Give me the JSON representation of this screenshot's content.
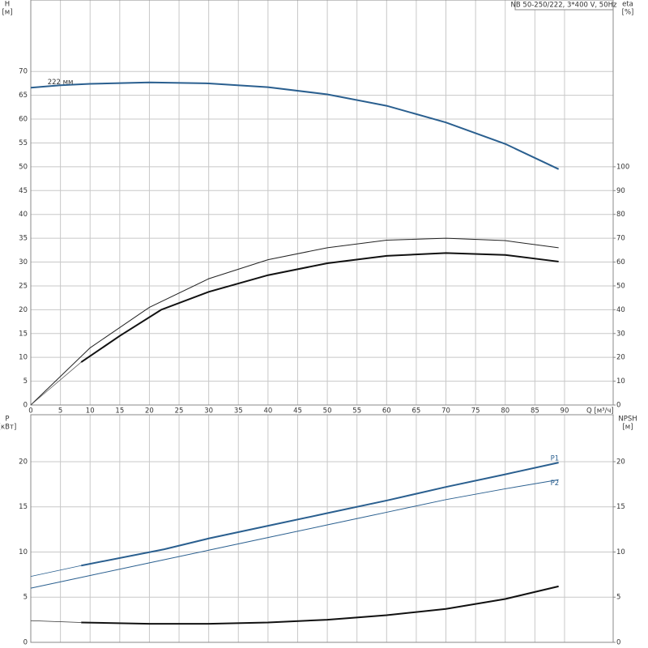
{
  "chart_data": [
    {
      "type": "line",
      "title": "NB 50-250/222, 3*400 V, 50Hz",
      "ylabel": "H",
      "ylabel_unit": "[м]",
      "y2label": "eta",
      "y2label_unit": "[%]",
      "xlabel": "Q [м³/ч]",
      "xlim": [
        0,
        98.2
      ],
      "xticks": [
        0,
        5,
        10,
        15,
        20,
        25,
        30,
        35,
        40,
        45,
        50,
        55,
        60,
        65,
        70,
        75,
        80,
        85,
        90
      ],
      "ylim": [
        0,
        85
      ],
      "yticks": [
        0,
        5,
        10,
        15,
        20,
        25,
        30,
        35,
        40,
        45,
        50,
        55,
        60,
        65,
        70
      ],
      "y2lim": [
        0,
        170
      ],
      "y2ticks": [
        0,
        10,
        20,
        30,
        40,
        50,
        60,
        70,
        80,
        90,
        100
      ],
      "grid": true,
      "series": [
        {
          "name": "222 мм",
          "color": "#2a5f8f",
          "line_width": 2,
          "axis": "y",
          "x": [
            0,
            5,
            10,
            20,
            30,
            40,
            50,
            60,
            70,
            80,
            89
          ],
          "values": [
            66.6,
            67.1,
            67.4,
            67.7,
            67.5,
            66.7,
            65.2,
            62.8,
            59.3,
            54.8,
            49.5
          ]
        },
        {
          "color": "#222222",
          "line_width": 1,
          "axis": "y2",
          "x": [
            0,
            10,
            20,
            30,
            40,
            50,
            60,
            70,
            80,
            89
          ],
          "values": [
            0,
            24,
            41,
            53,
            61,
            66,
            69.2,
            70,
            69,
            66
          ]
        },
        {
          "color": "#111111",
          "line_width": 2,
          "axis": "y2",
          "x": [
            8.5,
            15,
            22,
            30,
            40,
            50,
            60,
            70,
            80,
            89
          ],
          "values": [
            18,
            29,
            40,
            47.5,
            54.5,
            59.5,
            62.6,
            63.8,
            63,
            60.2
          ]
        },
        {
          "color": "#555555",
          "line_width": 0.7,
          "axis": "y2",
          "x": [
            0,
            8.5
          ],
          "values": [
            0,
            18
          ]
        }
      ]
    },
    {
      "type": "line",
      "ylabel": "P",
      "ylabel_unit": "[кВт]",
      "y2label": "NPSH",
      "y2label_unit": "[м]",
      "xlim": [
        0,
        98.2
      ],
      "ylim": [
        0,
        25.2
      ],
      "yticks": [
        0,
        5,
        10,
        15,
        20
      ],
      "y2lim": [
        0,
        25.2
      ],
      "y2ticks": [
        0,
        5,
        10,
        15,
        20
      ],
      "grid": true,
      "series": [
        {
          "name": "P1",
          "color": "#2a5f8f",
          "line_width": 2,
          "axis": "y",
          "x": [
            8.5,
            22.5,
            30,
            40,
            50,
            60,
            70,
            80,
            89
          ],
          "values": [
            8.5,
            10.3,
            11.5,
            12.9,
            14.3,
            15.7,
            17.2,
            18.6,
            19.9
          ]
        },
        {
          "color": "#2a5f8f",
          "line_width": 0.8,
          "axis": "y",
          "x": [
            0,
            8.5
          ],
          "values": [
            7.3,
            8.5
          ]
        },
        {
          "name": "P2",
          "color": "#2a5f8f",
          "line_width": 1,
          "axis": "y",
          "x": [
            0,
            10,
            20,
            30,
            40,
            50,
            60,
            70,
            80,
            89
          ],
          "values": [
            6.0,
            7.4,
            8.8,
            10.2,
            11.6,
            13.0,
            14.4,
            15.8,
            17.0,
            18.0
          ]
        },
        {
          "color": "#111111",
          "line_width": 2,
          "axis": "y2",
          "x": [
            8.5,
            20,
            30,
            40,
            50,
            60,
            70,
            80,
            89
          ],
          "values": [
            2.2,
            2.05,
            2.05,
            2.2,
            2.5,
            3.0,
            3.7,
            4.8,
            6.2
          ]
        },
        {
          "color": "#333333",
          "line_width": 0.8,
          "axis": "y2",
          "x": [
            0,
            8.5
          ],
          "values": [
            2.4,
            2.2
          ]
        }
      ]
    }
  ]
}
